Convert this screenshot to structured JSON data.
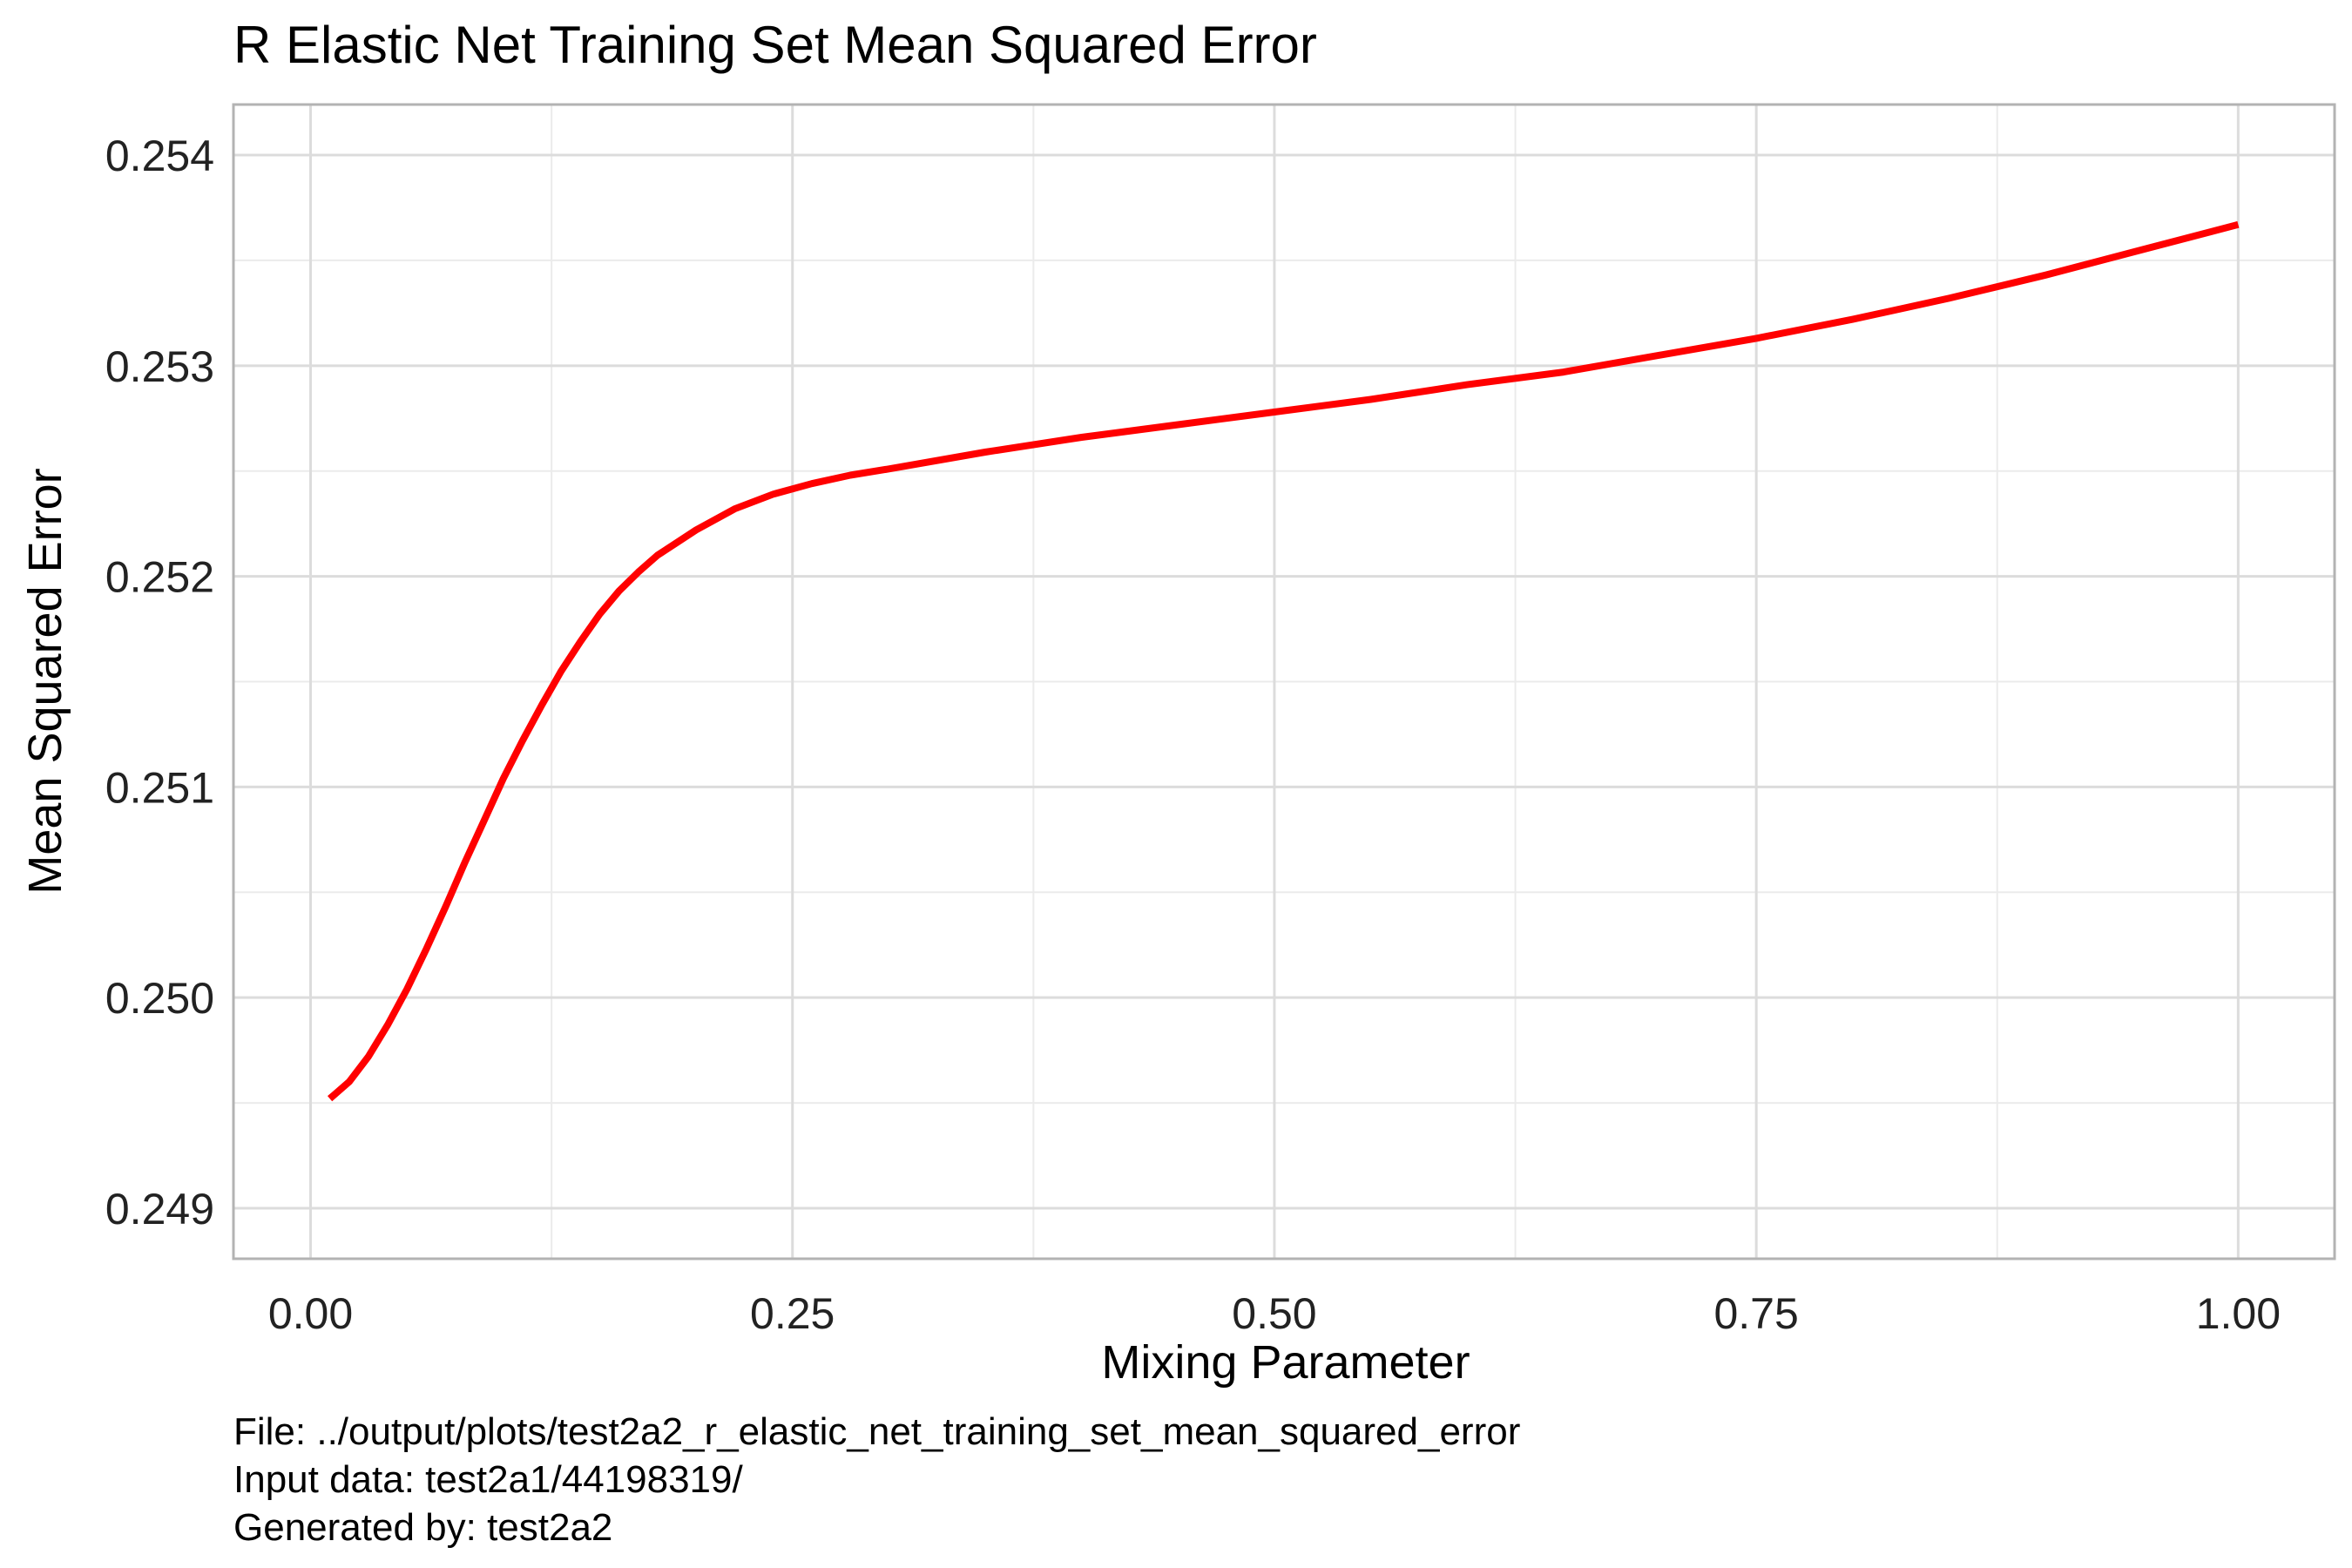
{
  "chart_data": {
    "type": "line",
    "title": "R Elastic Net Training Set Mean Squared Error",
    "xlabel": "Mixing Parameter",
    "ylabel": "Mean Squared Error",
    "xlim": [
      -0.04,
      1.05
    ],
    "ylim": [
      0.24876,
      0.25424
    ],
    "x_ticks": [
      0.0,
      0.25,
      0.5,
      0.75,
      1.0
    ],
    "x_tick_labels": [
      "0.00",
      "0.25",
      "0.50",
      "0.75",
      "1.00"
    ],
    "y_ticks": [
      0.249,
      0.25,
      0.251,
      0.252,
      0.253,
      0.254
    ],
    "y_tick_labels": [
      "0.249",
      "0.250",
      "0.251",
      "0.252",
      "0.253",
      "0.254"
    ],
    "grid": true,
    "line_color": "#ff0000",
    "series": [
      {
        "x": [
          0.01,
          0.02,
          0.03,
          0.04,
          0.05,
          0.06,
          0.07,
          0.08,
          0.09,
          0.1,
          0.11,
          0.12,
          0.13,
          0.14,
          0.15,
          0.16,
          0.17,
          0.18,
          0.19,
          0.2,
          0.22,
          0.24,
          0.26,
          0.28,
          0.3,
          0.35,
          0.4,
          0.45,
          0.5,
          0.55,
          0.6,
          0.65,
          0.7,
          0.75,
          0.8,
          0.85,
          0.9,
          0.95,
          1.0
        ],
        "values": [
          0.24952,
          0.2496,
          0.24972,
          0.24987,
          0.25004,
          0.25023,
          0.25043,
          0.25064,
          0.25084,
          0.25104,
          0.25122,
          0.25139,
          0.25155,
          0.25169,
          0.25182,
          0.25193,
          0.25202,
          0.2521,
          0.25216,
          0.25222,
          0.25232,
          0.25239,
          0.25244,
          0.25248,
          0.25251,
          0.25259,
          0.25266,
          0.25272,
          0.25278,
          0.25284,
          0.25291,
          0.25297,
          0.25305,
          0.25313,
          0.25322,
          0.25332,
          0.25343,
          0.25355,
          0.25367
        ]
      }
    ]
  },
  "caption": {
    "lines": [
      "File: ../output/plots/test2a2_r_elastic_net_training_set_mean_squared_error",
      "Input data: test2a1/44198319/",
      "Generated by: test2a2"
    ]
  }
}
